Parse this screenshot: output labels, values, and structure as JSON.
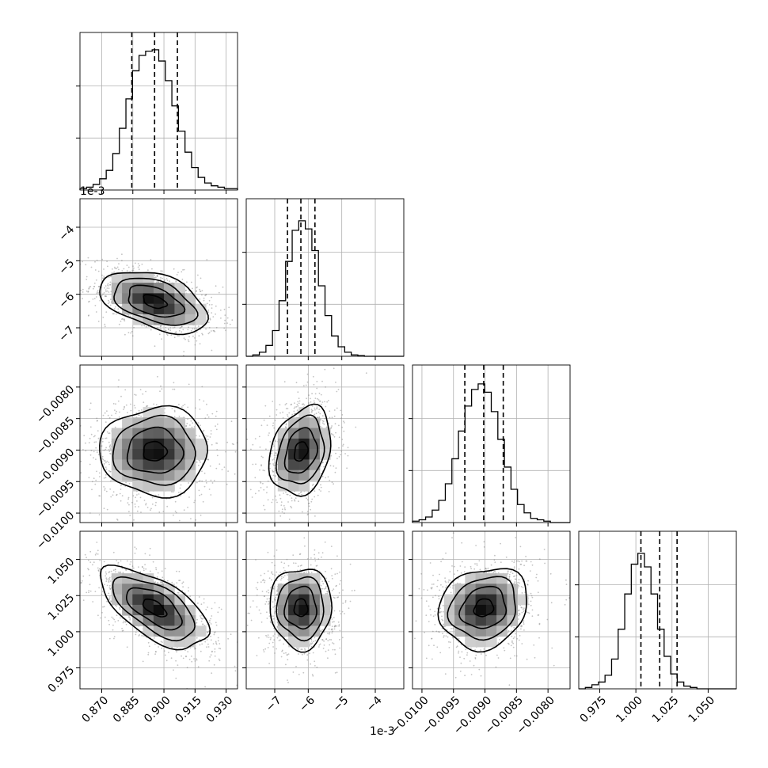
{
  "chart_data": {
    "type": "corner",
    "title": "",
    "grid": true,
    "axis_offsets": {
      "param_2": "1e-3"
    },
    "params": [
      {
        "id": "param_1",
        "range": [
          0.8595,
          0.9355
        ],
        "ticks": [
          0.87,
          0.885,
          0.9,
          0.915,
          0.93
        ],
        "tick_labels": [
          "0.870",
          "0.885",
          "0.900",
          "0.915",
          "0.930"
        ],
        "quantiles": [
          0.8845,
          0.8955,
          0.9065
        ],
        "mean": 0.8955,
        "sd": 0.0113,
        "hist_peak_fraction": 0.89,
        "hist_counts": [
          1,
          2,
          4,
          8,
          14,
          26,
          44,
          65,
          85,
          96,
          99,
          100,
          92,
          78,
          60,
          42,
          27,
          16,
          9,
          5,
          3,
          2,
          1,
          1
        ]
      },
      {
        "id": "param_2",
        "range": [
          -7.85,
          -3.15
        ],
        "ticks": [
          -7,
          -6,
          -5,
          -4
        ],
        "tick_labels": [
          "−7",
          "−6",
          "−5",
          "−4"
        ],
        "quantiles": [
          -6.62,
          -6.22,
          -5.8
        ],
        "mean": -6.22,
        "sd": 0.4,
        "hist_peak_fraction": 0.86,
        "hist_counts": [
          0,
          1,
          3,
          8,
          19,
          41,
          70,
          93,
          100,
          94,
          78,
          52,
          30,
          15,
          7,
          3,
          1,
          0.5,
          0,
          0,
          0,
          0,
          0,
          0
        ]
      },
      {
        "id": "param_3",
        "range": [
          -0.01015,
          -0.00765
        ],
        "ticks": [
          -0.01,
          -0.0095,
          -0.009,
          -0.0085,
          -0.008
        ],
        "tick_labels": [
          "−0.0100",
          "−0.0095",
          "−0.0090",
          "−0.0085",
          "−0.0080"
        ],
        "quantiles": [
          -0.00932,
          -0.00902,
          -0.00871
        ],
        "mean": -0.00902,
        "sd": 0.000305,
        "hist_peak_fraction": 0.88,
        "hist_counts": [
          1,
          2,
          4,
          9,
          16,
          28,
          46,
          66,
          84,
          96,
          100,
          94,
          80,
          60,
          40,
          24,
          13,
          7,
          3,
          2,
          1,
          0,
          0,
          0
        ]
      },
      {
        "id": "param_4",
        "range": [
          0.9605,
          1.0695
        ],
        "ticks": [
          0.975,
          1.0,
          1.025,
          1.05
        ],
        "tick_labels": [
          "0.975",
          "1.000",
          "1.025",
          "1.050"
        ],
        "quantiles": [
          1.0035,
          1.0165,
          1.0285
        ],
        "mean": 1.0165,
        "sd": 0.0122,
        "hist_peak_fraction": 0.86,
        "hist_counts": [
          0,
          1,
          3,
          5,
          10,
          22,
          44,
          70,
          92,
          100,
          90,
          70,
          44,
          24,
          11,
          5,
          2,
          1,
          0,
          0,
          0,
          0,
          0,
          0
        ]
      }
    ],
    "correlations": {
      "1-2": -0.45,
      "1-3": 0.0,
      "1-4": -0.62,
      "2-3": 0.25,
      "2-4": 0.0,
      "3-4": 0.15
    }
  }
}
